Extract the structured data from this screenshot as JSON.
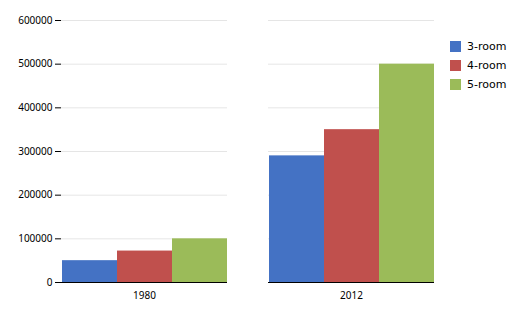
{
  "chart_data": {
    "type": "bar",
    "categories": [
      "1980",
      "2012"
    ],
    "series": [
      {
        "name": "3-room",
        "color": "#4472C4",
        "values": [
          50000,
          290000
        ]
      },
      {
        "name": "4-room",
        "color": "#C0504D",
        "values": [
          72000,
          350000
        ]
      },
      {
        "name": "5-room",
        "color": "#9BBB59",
        "values": [
          100000,
          500000
        ]
      }
    ],
    "ylim": [
      0,
      600000
    ],
    "yticks": [
      0,
      100000,
      200000,
      300000,
      400000,
      500000,
      600000
    ],
    "grid": true,
    "legend": "right"
  }
}
